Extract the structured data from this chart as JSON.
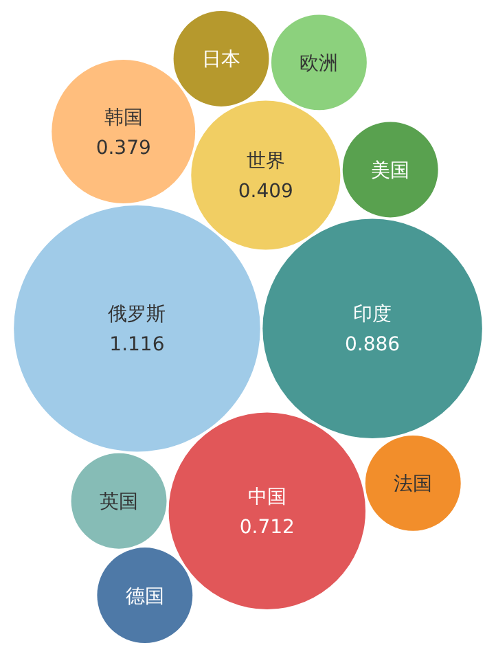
{
  "chart_data": {
    "type": "other",
    "data_labels": true,
    "categories": [
      "中国",
      "英国",
      "日本",
      "欧洲",
      "美国",
      "德国",
      "俄罗斯",
      "韩国",
      "法国",
      "世界",
      "印度"
    ],
    "values": [
      0.712,
      null,
      null,
      null,
      null,
      null,
      1.116,
      0.379,
      null,
      0.409,
      0.886
    ],
    "colors": [
      "#e15759",
      "#86bcb6",
      "#b6992d",
      "#8cd17d",
      "#59a14f",
      "#4e79a7",
      "#a0cbe8",
      "#ffbe7d",
      "#f28e2b",
      "#f1ce63",
      "#499894"
    ]
  }
}
